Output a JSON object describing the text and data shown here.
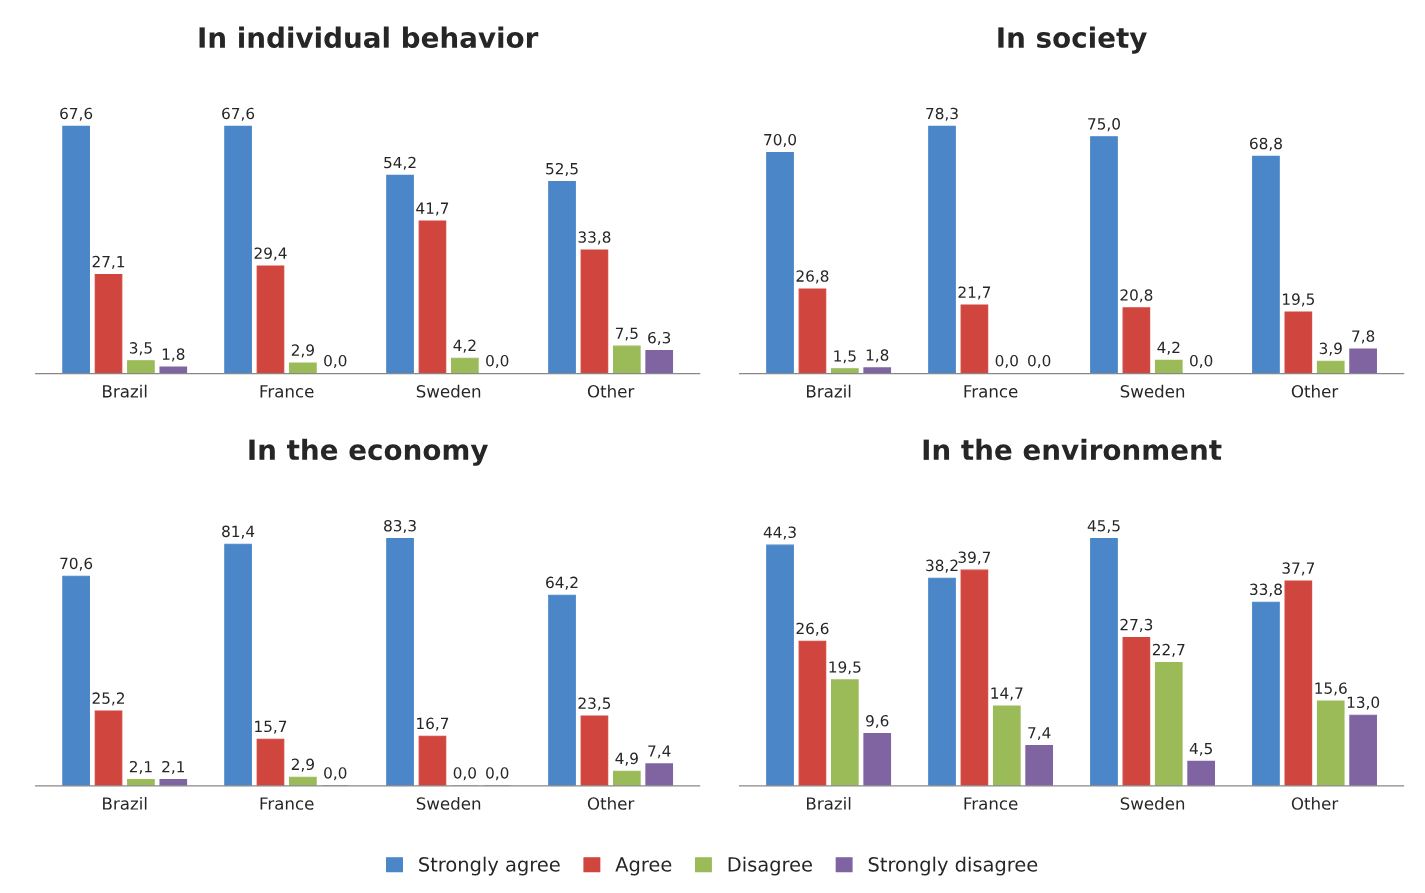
{
  "chart_data": [
    {
      "type": "bar",
      "title": "In individual behavior",
      "categories": [
        "Brazil",
        "France",
        "Sweden",
        "Other"
      ],
      "legend": "bottom",
      "series": [
        {
          "name": "Strongly agree",
          "color": "#4a86c8",
          "values": [
            67.6,
            67.6,
            54.2,
            52.5
          ],
          "value_labels": [
            "67,6",
            "67,6",
            "54,2",
            "52,5"
          ]
        },
        {
          "name": "Agree",
          "color": "#d0463e",
          "values": [
            27.1,
            29.4,
            41.7,
            33.8
          ],
          "value_labels": [
            "27,1",
            "29,4",
            "41,7",
            "33,8"
          ]
        },
        {
          "name": "Disagree",
          "color": "#9bbb59",
          "values": [
            3.5,
            2.9,
            4.2,
            7.5
          ],
          "value_labels": [
            "3,5",
            "2,9",
            "4,2",
            "7,5"
          ]
        },
        {
          "name": "Strongly disagree",
          "color": "#8064a2",
          "values": [
            1.8,
            0.0,
            0.0,
            6.3
          ],
          "value_labels": [
            "1,8",
            "0,0",
            "0,0",
            "6,3"
          ]
        }
      ]
    },
    {
      "type": "bar",
      "title": "In society",
      "categories": [
        "Brazil",
        "France",
        "Sweden",
        "Other"
      ],
      "series": [
        {
          "color": "#4a86c8",
          "values": [
            70.0,
            78.3,
            75.0,
            68.8
          ],
          "value_labels": [
            "70,0",
            "78,3",
            "75,0",
            "68,8"
          ]
        },
        {
          "color": "#d0463e",
          "values": [
            26.8,
            21.7,
            20.8,
            19.5
          ],
          "value_labels": [
            "26,8",
            "21,7",
            "20,8",
            "19,5"
          ]
        },
        {
          "color": "#9bbb59",
          "values": [
            1.5,
            0.0,
            4.2,
            3.9
          ],
          "value_labels": [
            "1,5",
            "0,0",
            "4,2",
            "3,9"
          ]
        },
        {
          "color": "#8064a2",
          "values": [
            1.8,
            0.0,
            0.0,
            7.8
          ],
          "value_labels": [
            "1,8",
            "0,0",
            "0,0",
            "7,8"
          ]
        }
      ]
    },
    {
      "type": "bar",
      "title": "In the economy",
      "categories": [
        "Brazil",
        "France",
        "Sweden",
        "Other"
      ],
      "series": [
        {
          "color": "#4a86c8",
          "values": [
            70.6,
            81.4,
            83.3,
            64.2
          ],
          "value_labels": [
            "70,6",
            "81,4",
            "83,3",
            "64,2"
          ]
        },
        {
          "color": "#d0463e",
          "values": [
            25.2,
            15.7,
            16.7,
            23.5
          ],
          "value_labels": [
            "25,2",
            "15,7",
            "16,7",
            "23,5"
          ]
        },
        {
          "color": "#9bbb59",
          "values": [
            2.1,
            2.9,
            0.0,
            4.9
          ],
          "value_labels": [
            "2,1",
            "2,9",
            "0,0",
            "4,9"
          ]
        },
        {
          "color": "#8064a2",
          "values": [
            2.1,
            0.0,
            0.0,
            7.4
          ],
          "value_labels": [
            "2,1",
            "0,0",
            "0,0",
            "7,4"
          ]
        }
      ]
    },
    {
      "type": "bar",
      "title": "In the environment",
      "categories": [
        "Brazil",
        "France",
        "Sweden",
        "Other"
      ],
      "series": [
        {
          "color": "#4a86c8",
          "values": [
            44.3,
            38.2,
            45.5,
            33.8
          ],
          "value_labels": [
            "44,3",
            "38,2",
            "45,5",
            "33,8"
          ]
        },
        {
          "color": "#d0463e",
          "values": [
            26.6,
            39.7,
            27.3,
            37.7
          ],
          "value_labels": [
            "26,6",
            "39,7",
            "27,3",
            "37,7"
          ]
        },
        {
          "color": "#9bbb59",
          "values": [
            19.5,
            14.7,
            22.7,
            15.6
          ],
          "value_labels": [
            "19,5",
            "14,7",
            "22,7",
            "15,6"
          ]
        },
        {
          "color": "#8064a2",
          "values": [
            9.6,
            7.4,
            4.5,
            13.0
          ],
          "value_labels": [
            "9,6",
            "7,4",
            "4,5",
            "13,0"
          ]
        }
      ]
    }
  ]
}
